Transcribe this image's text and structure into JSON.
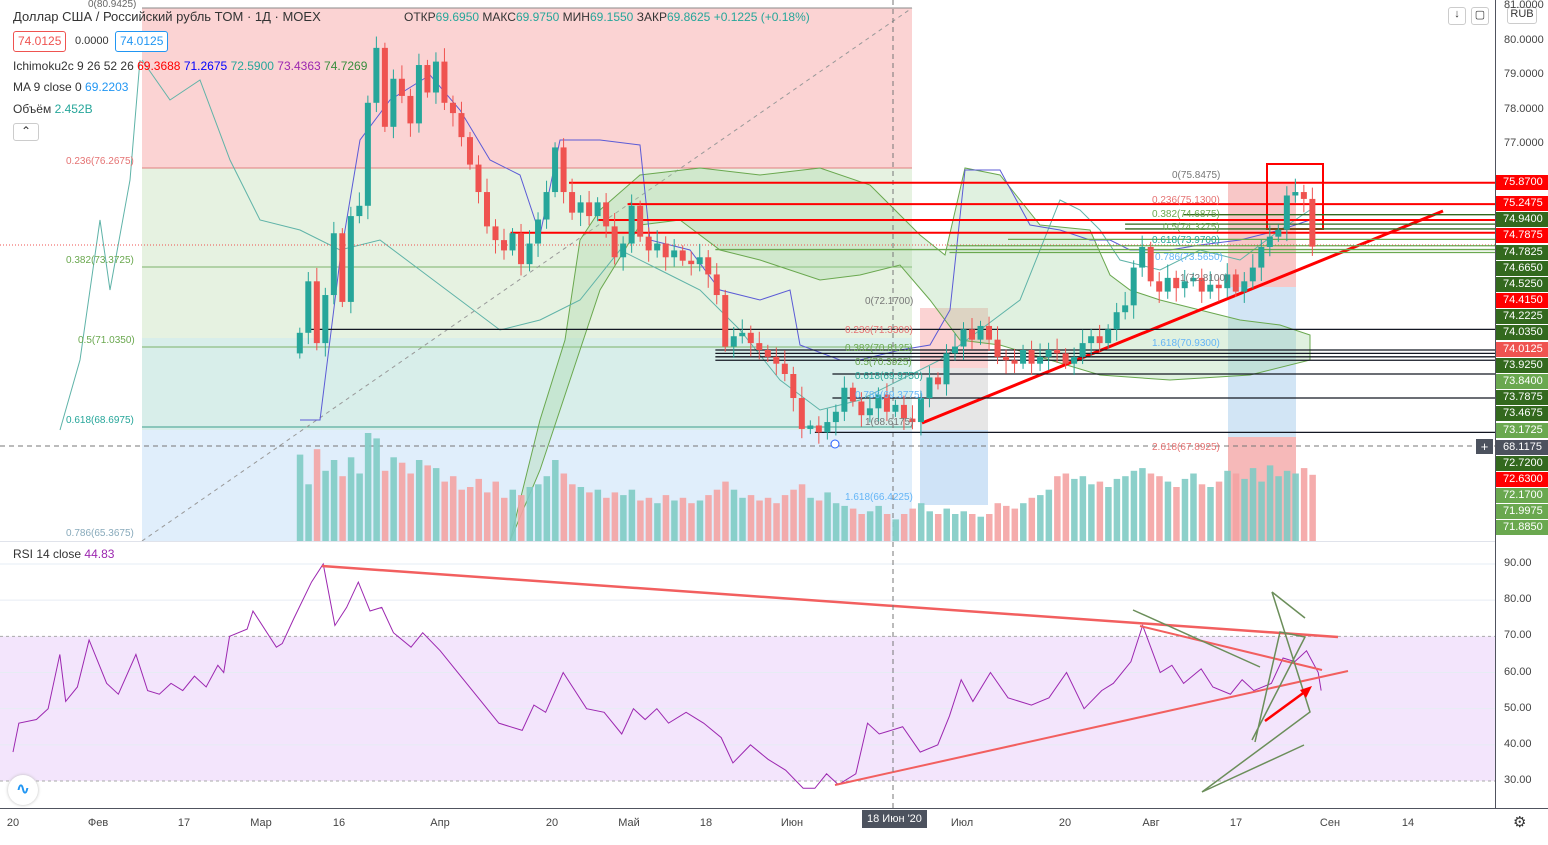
{
  "header": {
    "symbol": "Доллар США / Российский рубль TOM · 1Д · MOEX",
    "ohlc": {
      "open_label": "ОТКР",
      "open": "69.6950",
      "high_label": "МАКС",
      "high": "69.9750",
      "low_label": "МИН",
      "low": "69.1550",
      "close_label": "ЗАКР",
      "close": "69.8625",
      "change": "+0.1225 (+0.18%)"
    },
    "bid": "74.0125",
    "spread": "0.0000",
    "ask": "74.0125"
  },
  "indicators": {
    "ichimoku": {
      "name": "Ichimoku2c 9 26 52 26",
      "v1": "69.3688",
      "v2": "71.2675",
      "v3": "72.5900",
      "v4": "73.4363",
      "v5": "74.7269"
    },
    "ma": {
      "name": "MA 9 close 0",
      "value": "69.2203"
    },
    "volume": {
      "name": "Объём",
      "value": "2.452B"
    },
    "rsi": {
      "name": "RSI 14 close",
      "value": "44.83"
    }
  },
  "toolbar": {
    "collapse_icon": "chevron-up-icon",
    "currency": "RUB",
    "arrow_icon": "arrow-down-icon",
    "fullscreen_icon": "fullscreen-icon",
    "settings_icon": "gear-icon",
    "logo_icon": "tradingview-logo-icon"
  },
  "price_axis": {
    "ticks": [
      "81.0000",
      "80.0000",
      "79.0000",
      "78.0000",
      "77.0000"
    ],
    "labels": [
      {
        "text": "75.8700",
        "color": "#ff0000"
      },
      {
        "text": "75.2475",
        "color": "#ff0000"
      },
      {
        "text": "74.9400",
        "color": "#33691e"
      },
      {
        "text": "74.7875",
        "color": "#ff0000"
      },
      {
        "text": "74.7825",
        "color": "#33691e"
      },
      {
        "text": "74.6650",
        "color": "#33691e"
      },
      {
        "text": "74.5250",
        "color": "#33691e"
      },
      {
        "text": "74.4150",
        "color": "#ff0000"
      },
      {
        "text": "74.2225",
        "color": "#33691e"
      },
      {
        "text": "74.0350",
        "color": "#33691e"
      },
      {
        "text": "74.0125",
        "color": "#ef5350"
      },
      {
        "text": "73.9250",
        "color": "#33691e"
      },
      {
        "text": "73.8400",
        "color": "#6aa84f"
      },
      {
        "text": "73.7875",
        "color": "#33691e"
      },
      {
        "text": "73.4675",
        "color": "#33691e"
      },
      {
        "text": "73.1725",
        "color": "#6aa84f"
      },
      {
        "text": "68.1175",
        "color": "#4c525e"
      },
      {
        "text": "72.7200",
        "color": "#33691e"
      },
      {
        "text": "72.6300",
        "color": "#ff0000"
      },
      {
        "text": "72.1700",
        "color": "#6aa84f"
      },
      {
        "text": "71.9975",
        "color": "#6aa84f"
      },
      {
        "text": "71.8850",
        "color": "#6aa84f"
      }
    ]
  },
  "rsi_axis": {
    "ticks": [
      "90.00",
      "80.00",
      "70.00",
      "60.00",
      "50.00",
      "40.00",
      "30.00"
    ]
  },
  "time_axis": {
    "labels": [
      "20",
      "Фев",
      "17",
      "Мар",
      "16",
      "Апр",
      "20",
      "Май",
      "18",
      "Июн",
      "Июл",
      "20",
      "Авг",
      "17",
      "Сен",
      "14"
    ],
    "cursor": "18 Июн '20"
  },
  "fib_labels": {
    "a0": "0(80.9425)",
    "a1": "0.236(76.2675)",
    "a2": "0.382(73.3725)",
    "a3": "0.5(71.0350)",
    "a4": "0.618(68.6975)",
    "a5": "0.786(65.3675)",
    "b0": "0(72.1700)",
    "b1": "0.236(71.3300)",
    "b2": "0.382(70.8125)",
    "b3": "0.5(70.3925)",
    "b4": "0.618(69.9750)",
    "b5": "0.786(69.3775)",
    "b6": "1(68.6175)",
    "b7": "1.618(66.4225)",
    "c0": "0(75.8475)",
    "c1": "0.236(75.1300)",
    "c2": "0.382(74.6875)",
    "c3": "0.5(74.3275)",
    "c4": "0.618(73.9700)",
    "c5": "0.786(73.5650)",
    "c6": "1(72.8100)",
    "c7": "1.618(70.9300)",
    "c8": "2.618(67.8925)"
  },
  "chart_data": {
    "type": "candlestick",
    "price_range": [
      66.6,
      81.2
    ],
    "candle_start_day": 49,
    "candle_end_day": 222,
    "closes": [
      71.5,
      73.0,
      71.2,
      72.6,
      74.4,
      72.4,
      74.9,
      75.2,
      78.2,
      79.8,
      77.5,
      78.9,
      78.4,
      77.6,
      79.3,
      78.5,
      79.4,
      78.2,
      77.9,
      77.2,
      76.4,
      75.6,
      74.6,
      74.2,
      73.9,
      74.4,
      73.5,
      74.1,
      74.8,
      75.6,
      76.9,
      75.6,
      75.0,
      75.3,
      74.9,
      75.3,
      74.6,
      73.7,
      74.1,
      75.2,
      74.3,
      73.9,
      74.1,
      73.7,
      73.9,
      73.6,
      73.5,
      73.7,
      73.2,
      72.6,
      71.1,
      71.4,
      71.5,
      71.2,
      71.0,
      70.8,
      70.6,
      70.3,
      69.6,
      68.7,
      68.8,
      68.6,
      68.9,
      69.2,
      69.9,
      69.5,
      69.1,
      69.3,
      69.7,
      69.2,
      69.4,
      69.0,
      68.9,
      69.6,
      70.2,
      70.0,
      70.9,
      71.1,
      71.6,
      71.3,
      71.7,
      71.3,
      70.8,
      70.7,
      70.6,
      71.0,
      70.6,
      70.8,
      71.0,
      70.9,
      70.6,
      70.8,
      71.2,
      71.4,
      71.2,
      71.6,
      72.1,
      72.3,
      73.4,
      74.0,
      73.0,
      72.7,
      73.1,
      72.8,
      73.0,
      73.1,
      72.7,
      72.9,
      72.8,
      73.2,
      72.7,
      73.0,
      73.4,
      74.0,
      74.3,
      74.5,
      75.5,
      75.6,
      75.4,
      74.01
    ],
    "volumes_b": [
      3.2,
      2.1,
      3.4,
      2.6,
      3.0,
      2.4,
      3.1,
      2.5,
      4.0,
      3.8,
      2.6,
      3.1,
      2.9,
      2.5,
      3.0,
      2.8,
      2.7,
      2.2,
      2.4,
      1.9,
      2.0,
      2.3,
      1.8,
      2.2,
      1.6,
      1.9,
      1.7,
      2.0,
      2.1,
      2.4,
      3.0,
      2.5,
      2.1,
      2.0,
      1.8,
      1.9,
      1.6,
      1.8,
      1.7,
      1.9,
      1.5,
      1.6,
      1.4,
      1.7,
      1.5,
      1.6,
      1.4,
      1.5,
      1.7,
      1.9,
      2.2,
      1.9,
      1.6,
      1.7,
      1.5,
      1.6,
      1.4,
      1.7,
      1.9,
      2.1,
      1.6,
      1.5,
      1.8,
      1.4,
      1.3,
      1.2,
      1.0,
      1.1,
      1.3,
      1.0,
      0.8,
      1.0,
      1.2,
      1.4,
      1.1,
      1.0,
      1.2,
      1.0,
      1.1,
      1.0,
      0.9,
      1.0,
      1.4,
      1.3,
      1.2,
      1.4,
      1.6,
      1.7,
      1.9,
      2.4,
      2.5,
      2.3,
      2.4,
      2.1,
      2.2,
      2.0,
      2.3,
      2.4,
      2.6,
      2.7,
      2.5,
      2.4,
      2.2,
      2.0,
      2.3,
      2.5,
      2.1,
      2.0,
      2.2,
      2.6,
      2.5,
      2.3,
      2.7,
      2.2,
      2.8,
      2.4,
      2.6,
      2.5,
      2.7,
      2.452
    ],
    "levels": [
      {
        "price": 75.87,
        "from_day": 95,
        "color": "#ff0000"
      },
      {
        "price": 75.2475,
        "from_day": 105,
        "color": "#ff0000"
      },
      {
        "price": 74.94,
        "from_day": 200,
        "color": "#33691e"
      },
      {
        "price": 74.7875,
        "from_day": 100,
        "color": "#ff0000"
      },
      {
        "price": 74.665,
        "from_day": 190,
        "color": "#33691e"
      },
      {
        "price": 74.525,
        "from_day": 190,
        "color": "#33691e"
      },
      {
        "price": 74.415,
        "from_day": 85,
        "color": "#ff0000"
      },
      {
        "price": 74.2225,
        "from_day": 170,
        "color": "#6aa84f"
      },
      {
        "price": 74.035,
        "from_day": 160,
        "color": "#6aa84f"
      },
      {
        "price": 73.925,
        "from_day": 120,
        "color": "#6aa84f"
      },
      {
        "price": 73.84,
        "from_day": 160,
        "color": "#6aa84f"
      },
      {
        "price": 71.6,
        "from_day": 50,
        "color": "#131722"
      },
      {
        "price": 71.0,
        "from_day": 120,
        "color": "#131722"
      },
      {
        "price": 70.9,
        "from_day": 120,
        "color": "#131722"
      },
      {
        "price": 70.8,
        "from_day": 120,
        "color": "#131722"
      },
      {
        "price": 70.7,
        "from_day": 120,
        "color": "#131722"
      },
      {
        "price": 70.3,
        "from_day": 140,
        "color": "#131722"
      },
      {
        "price": 69.6,
        "from_day": 140,
        "color": "#131722"
      },
      {
        "price": 68.6,
        "from_day": 137,
        "color": "#131722"
      }
    ],
    "rsi": [
      [
        0,
        38
      ],
      [
        1,
        46
      ],
      [
        4,
        47
      ],
      [
        6,
        50
      ],
      [
        8,
        65
      ],
      [
        9,
        52
      ],
      [
        11,
        56
      ],
      [
        13,
        69
      ],
      [
        16,
        57
      ],
      [
        18,
        54
      ],
      [
        21,
        65
      ],
      [
        23,
        55
      ],
      [
        25,
        54
      ],
      [
        27,
        57
      ],
      [
        29,
        55
      ],
      [
        31,
        59
      ],
      [
        33,
        56
      ],
      [
        35,
        62
      ],
      [
        36,
        60
      ],
      [
        37,
        70
      ],
      [
        40,
        72
      ],
      [
        41,
        77
      ],
      [
        45,
        67
      ],
      [
        46,
        68
      ],
      [
        48,
        75
      ],
      [
        51,
        85
      ],
      [
        53,
        90
      ],
      [
        55,
        73
      ],
      [
        57,
        78
      ],
      [
        59,
        85
      ],
      [
        61,
        77
      ],
      [
        63,
        78
      ],
      [
        65,
        71
      ],
      [
        68,
        67
      ],
      [
        70,
        71
      ],
      [
        73,
        66
      ],
      [
        76,
        60
      ],
      [
        80,
        52
      ],
      [
        83,
        46
      ],
      [
        87,
        44
      ],
      [
        89,
        51
      ],
      [
        91,
        49
      ],
      [
        94,
        60
      ],
      [
        98,
        50
      ],
      [
        101,
        49
      ],
      [
        104,
        43
      ],
      [
        106,
        50
      ],
      [
        108,
        47
      ],
      [
        110,
        50
      ],
      [
        112,
        46
      ],
      [
        115,
        49
      ],
      [
        118,
        46
      ],
      [
        121,
        42
      ],
      [
        123,
        35
      ],
      [
        126,
        40
      ],
      [
        129,
        36
      ],
      [
        132,
        33
      ],
      [
        135,
        28
      ],
      [
        137,
        28
      ],
      [
        139,
        32
      ],
      [
        141,
        29
      ],
      [
        144,
        32
      ],
      [
        146,
        46
      ],
      [
        148,
        43
      ],
      [
        152,
        45
      ],
      [
        155,
        38
      ],
      [
        158,
        40
      ],
      [
        160,
        48
      ],
      [
        162,
        58
      ],
      [
        164,
        52
      ],
      [
        167,
        60
      ],
      [
        170,
        53
      ],
      [
        174,
        51
      ],
      [
        177,
        53
      ],
      [
        180,
        60
      ],
      [
        183,
        50
      ],
      [
        186,
        55
      ],
      [
        188,
        57
      ],
      [
        191,
        63
      ],
      [
        193,
        73
      ],
      [
        196,
        60
      ],
      [
        198,
        62
      ],
      [
        200,
        57
      ],
      [
        203,
        61
      ],
      [
        205,
        56
      ],
      [
        208,
        54
      ],
      [
        210,
        58
      ],
      [
        212,
        55
      ],
      [
        215,
        57
      ],
      [
        217,
        64
      ],
      [
        219,
        63
      ],
      [
        221,
        66
      ],
      [
        223,
        60
      ],
      [
        223.5,
        55
      ]
    ],
    "rsi_range": [
      22,
      95
    ],
    "rsi_band": [
      30,
      70
    ]
  }
}
